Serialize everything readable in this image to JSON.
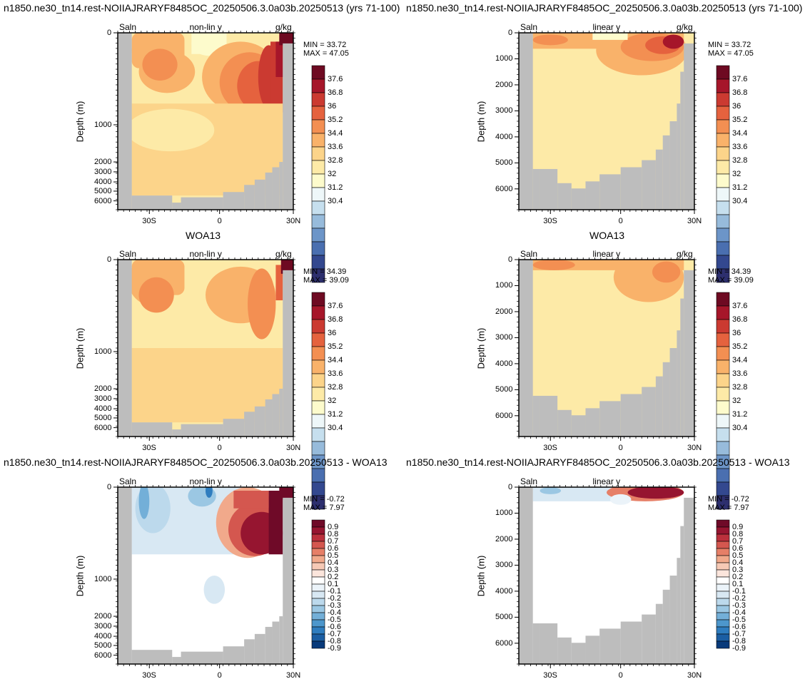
{
  "rows": [
    {
      "left_title": "n1850.ne30_tn14.rest-NOIIAJRARYF8485OC_20250506.3.0a03b.20250513 (yrs 71-100)",
      "right_title": "n1850.ne30_tn14.rest-NOIIAJRARYF8485OC_20250506.3.0a03b.20250513 (yrs 71-100)"
    },
    {
      "left_title": "WOA13",
      "right_title": "WOA13"
    },
    {
      "left_title": "n1850.ne30_tn14.rest-NOIIAJRARYF8485OC_20250506.3.0a03b.20250513 - WOA13",
      "right_title": "n1850.ne30_tn14.rest-NOIIAJRARYF8485OC_20250506.3.0a03b.20250513 - WOA13"
    }
  ],
  "chart_data": [
    {
      "type": "heatmap",
      "row": 0,
      "col": 0,
      "var": "Saln",
      "units": "g/kg",
      "scale_note": "non-lin y",
      "ylabel": "Depth (m)",
      "min": "33.72",
      "max": "47.05",
      "xticks": [
        "30S",
        "0",
        "30N"
      ],
      "yticks": [
        "0",
        "1000",
        "2000",
        "3000",
        "4000",
        "5000",
        "6000"
      ],
      "colorbar": [
        "37.6",
        "36.8",
        "36",
        "35.2",
        "34.4",
        "33.6",
        "32.8",
        "32",
        "31.2",
        "30.4"
      ]
    },
    {
      "type": "heatmap",
      "row": 0,
      "col": 1,
      "var": "Saln",
      "units": "g/kg",
      "scale_note": "linear y",
      "ylabel": "Depth (m)",
      "min": "33.72",
      "max": "47.05",
      "xticks": [
        "30S",
        "0",
        "30N"
      ],
      "yticks": [
        "0",
        "1000",
        "2000",
        "3000",
        "4000",
        "5000",
        "6000"
      ],
      "colorbar": [
        "37.6",
        "36.8",
        "36",
        "35.2",
        "34.4",
        "33.6",
        "32.8",
        "32",
        "31.2",
        "30.4"
      ]
    },
    {
      "type": "heatmap",
      "row": 1,
      "col": 0,
      "var": "Saln",
      "units": "g/kg",
      "scale_note": "non-lin y",
      "ylabel": "Depth (m)",
      "min": "34.39",
      "max": "39.09",
      "xticks": [
        "30S",
        "0",
        "30N"
      ],
      "yticks": [
        "0",
        "1000",
        "2000",
        "3000",
        "4000",
        "5000",
        "6000"
      ],
      "colorbar": [
        "37.6",
        "36.8",
        "36",
        "35.2",
        "34.4",
        "33.6",
        "32.8",
        "32",
        "31.2",
        "30.4"
      ]
    },
    {
      "type": "heatmap",
      "row": 1,
      "col": 1,
      "var": "Saln",
      "units": "g/kg",
      "scale_note": "linear y",
      "ylabel": "Depth (m)",
      "min": "34.39",
      "max": "39.09",
      "xticks": [
        "30S",
        "0",
        "30N"
      ],
      "yticks": [
        "0",
        "1000",
        "2000",
        "3000",
        "4000",
        "5000",
        "6000"
      ],
      "colorbar": [
        "37.6",
        "36.8",
        "36",
        "35.2",
        "34.4",
        "33.6",
        "32.8",
        "32",
        "31.2",
        "30.4"
      ]
    },
    {
      "type": "heatmap",
      "row": 2,
      "col": 0,
      "var": "Saln",
      "units": "",
      "scale_note": "non-lin y",
      "ylabel": "Depth (m)",
      "min": "-0.72",
      "max": "7.97",
      "xticks": [
        "30S",
        "0",
        "30N"
      ],
      "yticks": [
        "0",
        "1000",
        "2000",
        "3000",
        "4000",
        "5000",
        "6000"
      ],
      "colorbar": [
        "0.9",
        "0.8",
        "0.7",
        "0.6",
        "0.5",
        "0.4",
        "0.3",
        "0.2",
        "0.1",
        "-0.1",
        "-0.2",
        "-0.3",
        "-0.4",
        "-0.5",
        "-0.6",
        "-0.7",
        "-0.8",
        "-0.9"
      ]
    },
    {
      "type": "heatmap",
      "row": 2,
      "col": 1,
      "var": "Saln",
      "units": "",
      "scale_note": "linear y",
      "ylabel": "Depth (m)",
      "min": "-0.72",
      "max": "7.97",
      "xticks": [
        "30S",
        "0",
        "30N"
      ],
      "yticks": [
        "0",
        "1000",
        "2000",
        "3000",
        "4000",
        "5000",
        "6000"
      ],
      "colorbar": [
        "0.9",
        "0.8",
        "0.7",
        "0.6",
        "0.5",
        "0.4",
        "0.3",
        "0.2",
        "0.1",
        "-0.1",
        "-0.2",
        "-0.3",
        "-0.4",
        "-0.5",
        "-0.6",
        "-0.7",
        "-0.8",
        "-0.9"
      ]
    }
  ],
  "colors": {
    "land": "#bdbdbd",
    "salt_scale": [
      "#2d2f6e",
      "#33488f",
      "#4a6fb0",
      "#6c95c8",
      "#97bbdb",
      "#c6dfee",
      "#eef7f9",
      "#fdfbcc",
      "#fdeaa7",
      "#fcd48a",
      "#f9b26a",
      "#f38f52",
      "#e5623e",
      "#cb3a31",
      "#a6162a",
      "#6e0a22"
    ],
    "diff_scale": [
      "#083a7a",
      "#1b5ea3",
      "#2f7dbf",
      "#4d97cc",
      "#73afd8",
      "#9bc7e3",
      "#bcd9ec",
      "#d8e8f3",
      "#ebf3f9",
      "#ffffff",
      "#fbe5dc",
      "#f6c9b5",
      "#f1a98b",
      "#e67f67",
      "#d4574f",
      "#bb303c",
      "#961530",
      "#6f0a28"
    ]
  }
}
